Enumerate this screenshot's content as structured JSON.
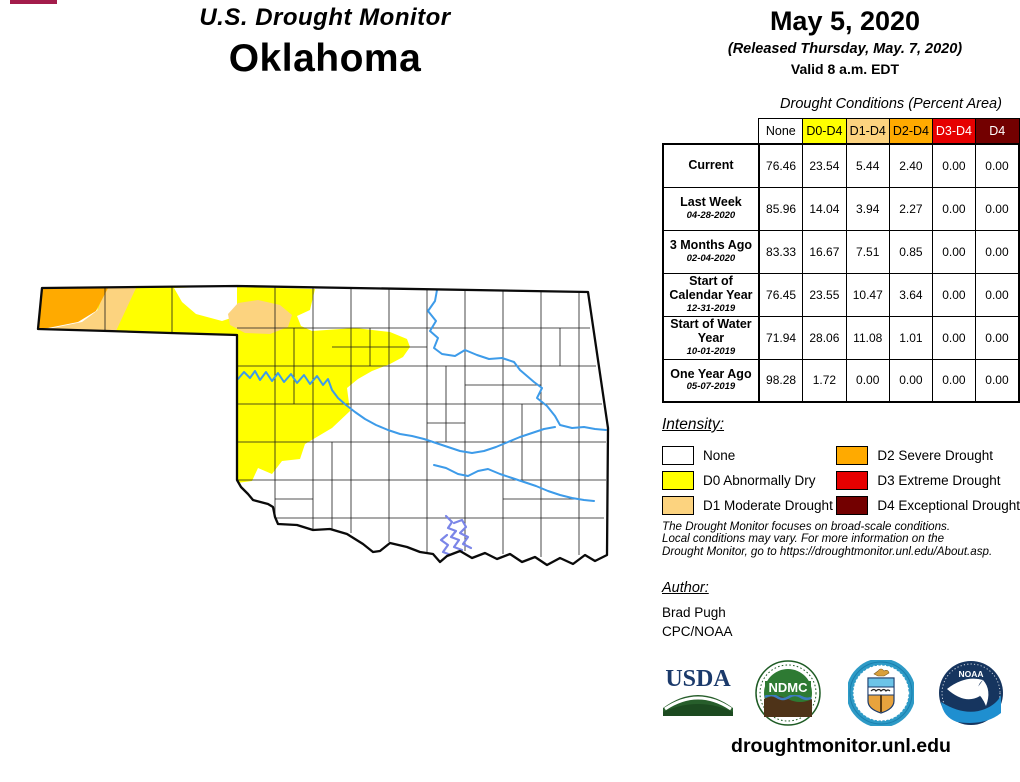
{
  "header": {
    "kicker": "U.S. Drought Monitor",
    "state": "Oklahoma"
  },
  "date_block": {
    "date": "May 5, 2020",
    "released": "(Released Thursday, May. 7, 2020)",
    "valid": "Valid 8 a.m. EDT"
  },
  "table": {
    "caption": "Drought Conditions (Percent Area)",
    "columns": [
      "None",
      "D0-D4",
      "D1-D4",
      "D2-D4",
      "D3-D4",
      "D4"
    ],
    "column_colors": [
      "#FFFFFF",
      "#FFFF00",
      "#FCD37F",
      "#FFAA00",
      "#E60000",
      "#730000"
    ],
    "column_text_colors": [
      "#000000",
      "#000000",
      "#000000",
      "#000000",
      "#FFFFFF",
      "#FFFFFF"
    ],
    "rows": [
      {
        "label": "Current",
        "date": "",
        "values": [
          "76.46",
          "23.54",
          "5.44",
          "2.40",
          "0.00",
          "0.00"
        ]
      },
      {
        "label": "Last Week",
        "date": "04-28-2020",
        "values": [
          "85.96",
          "14.04",
          "3.94",
          "2.27",
          "0.00",
          "0.00"
        ]
      },
      {
        "label": "3 Months Ago",
        "date": "02-04-2020",
        "values": [
          "83.33",
          "16.67",
          "7.51",
          "0.85",
          "0.00",
          "0.00"
        ]
      },
      {
        "label": "Start of Calendar Year",
        "date": "12-31-2019",
        "values": [
          "76.45",
          "23.55",
          "10.47",
          "3.64",
          "0.00",
          "0.00"
        ]
      },
      {
        "label": "Start of Water Year",
        "date": "10-01-2019",
        "values": [
          "71.94",
          "28.06",
          "11.08",
          "1.01",
          "0.00",
          "0.00"
        ]
      },
      {
        "label": "One Year Ago",
        "date": "05-07-2019",
        "values": [
          "98.28",
          "1.72",
          "0.00",
          "0.00",
          "0.00",
          "0.00"
        ]
      }
    ]
  },
  "legend": {
    "title": "Intensity:",
    "items": [
      {
        "label": "None",
        "color": "#FFFFFF"
      },
      {
        "label": "D0 Abnormally Dry",
        "color": "#FFFF00"
      },
      {
        "label": "D1 Moderate Drought",
        "color": "#FCD37F"
      },
      {
        "label": "D2 Severe Drought",
        "color": "#FFAA00"
      },
      {
        "label": "D3 Extreme Drought",
        "color": "#E60000"
      },
      {
        "label": "D4 Exceptional Drought",
        "color": "#730000"
      }
    ]
  },
  "disclaimer": {
    "lines": [
      "The Drought Monitor focuses on broad-scale conditions.",
      "Local conditions may vary. For more information on the",
      "Drought Monitor, go to https://droughtmonitor.unl.edu/About.asp."
    ]
  },
  "author": {
    "title": "Author:",
    "name": "Brad Pugh",
    "org": "CPC/NOAA"
  },
  "logos": {
    "usda_text": "USDA",
    "ndmc_text": "NDMC",
    "noaa_text": "NOAA"
  },
  "footer_url": "droughtmonitor.unl.edu",
  "colors": {
    "none": "#FFFFFF",
    "d0": "#FFFF00",
    "d1": "#FCD37F",
    "d2": "#FFAA00",
    "d3": "#E60000",
    "d4": "#730000",
    "river": "#3D9BE9",
    "lake": "#7B86E8",
    "top_bar": "#A31C4B"
  }
}
